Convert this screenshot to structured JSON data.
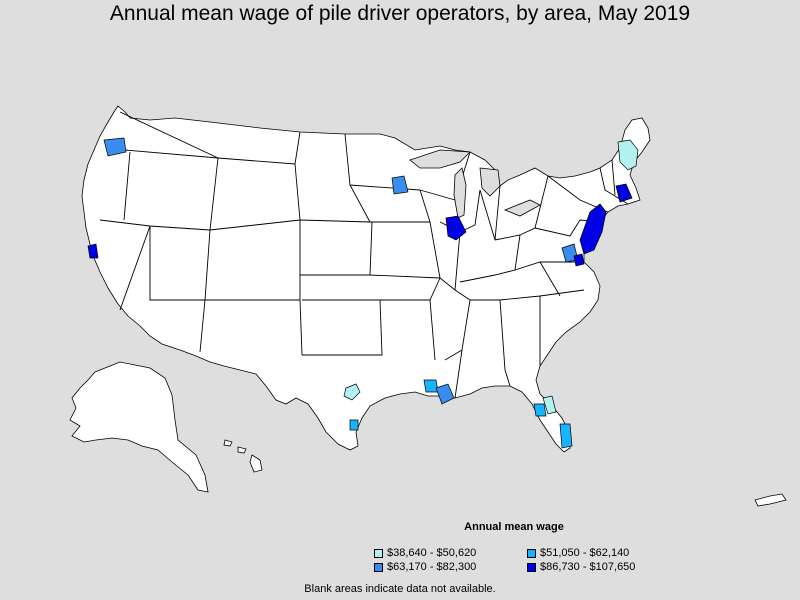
{
  "title": "Annual mean wage of pile driver operators, by area, May 2019",
  "legend": {
    "title": "Annual mean wage",
    "items": [
      {
        "label": "$38,640 - $50,620",
        "color": "#b3f0f0"
      },
      {
        "label": "$51,050 - $62,140",
        "color": "#19b4ff"
      },
      {
        "label": "$63,170 - $82,300",
        "color": "#3a8cf0"
      },
      {
        "label": "$86,730 - $107,650",
        "color": "#0000e6"
      }
    ]
  },
  "footnote": "Blank areas indicate data not available.",
  "colors": {
    "background": "#dedede",
    "land": "#ffffff",
    "border": "#000000"
  }
}
